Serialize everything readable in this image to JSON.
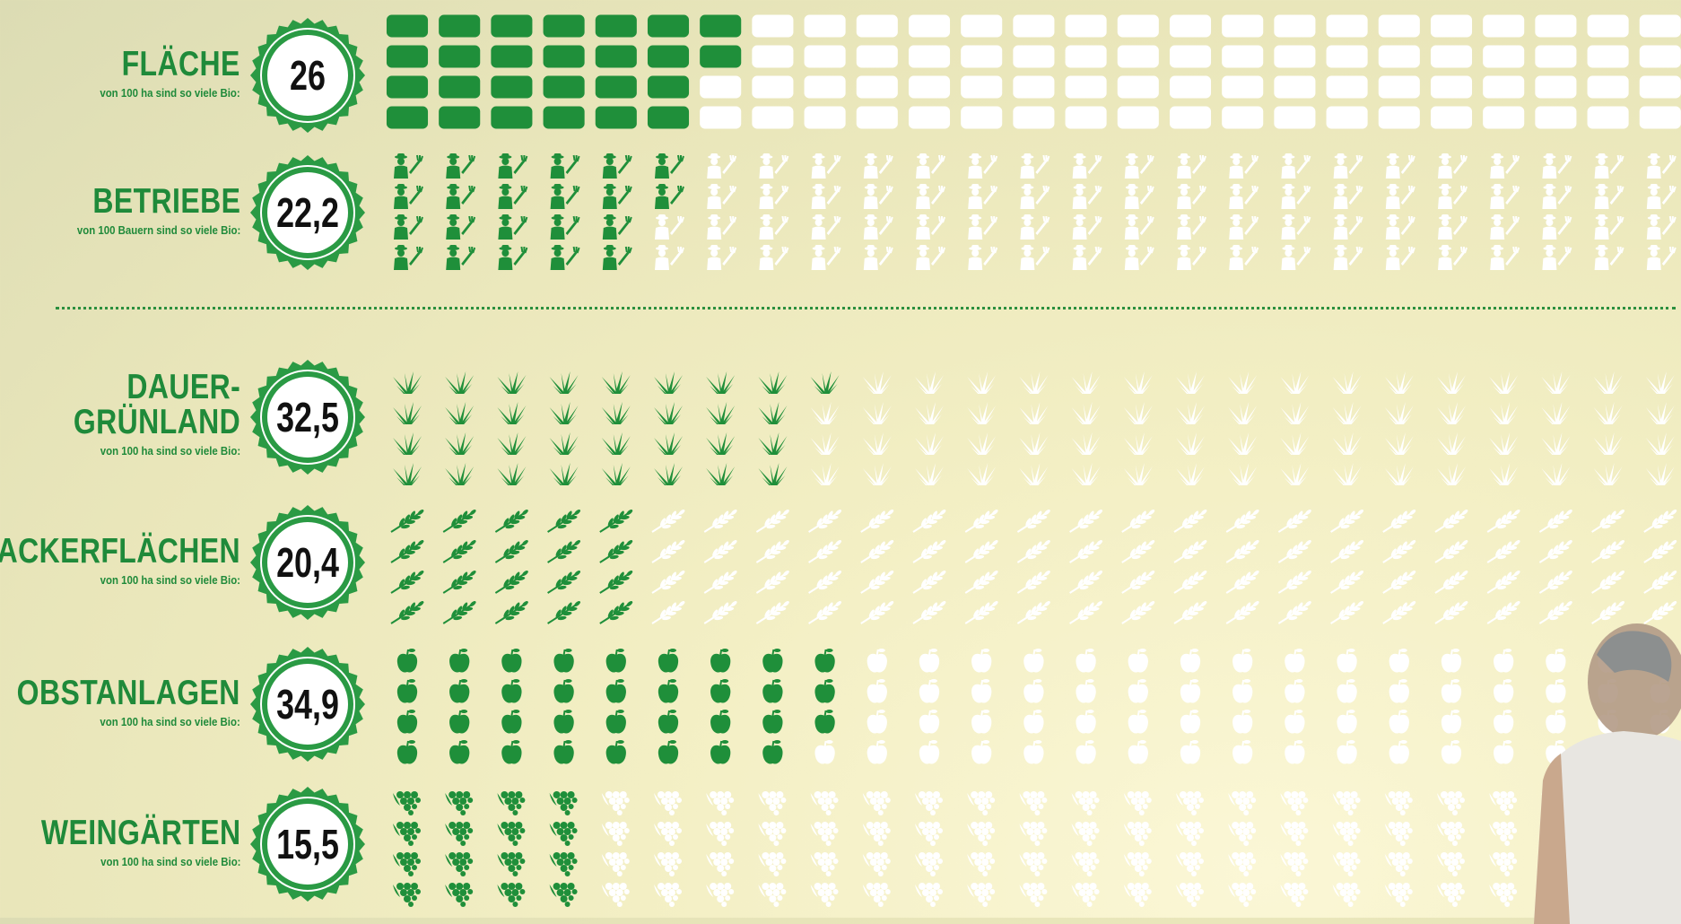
{
  "colors": {
    "filled": "#1f8f3a",
    "empty": "#ffffff",
    "badge_ring": "#2a9a44",
    "label": "#1f8a3a"
  },
  "chart_data": {
    "type": "table",
    "grid": {
      "columns": 25,
      "rows": 4,
      "units_per_row": 100
    },
    "rows": [
      {
        "key": "flaeche",
        "title_lines": [
          "FLÄCHE"
        ],
        "subtitle": "von 100 ha sind so viele Bio:",
        "value_label": "26",
        "value": 26,
        "icon": "field-block-icon"
      },
      {
        "key": "betriebe",
        "title_lines": [
          "BETRIEBE"
        ],
        "subtitle": "von 100 Bauern sind so viele Bio:",
        "value_label": "22,2",
        "value": 22.2,
        "icon": "farmer-icon"
      },
      {
        "key": "dauer",
        "title_lines": [
          "DAUER-",
          "GRÜNLAND"
        ],
        "subtitle": "von 100 ha sind so viele Bio:",
        "value_label": "32,5",
        "value": 32.5,
        "icon": "grass-icon"
      },
      {
        "key": "acker",
        "title_lines": [
          "ACKERFLÄCHEN"
        ],
        "subtitle": "von 100 ha sind so viele Bio:",
        "value_label": "20,4",
        "value": 20.4,
        "icon": "wheat-icon"
      },
      {
        "key": "obst",
        "title_lines": [
          "OBSTANLAGEN"
        ],
        "subtitle": "von 100 ha sind so viele Bio:",
        "value_label": "34,9",
        "value": 34.9,
        "icon": "apple-icon"
      },
      {
        "key": "wein",
        "title_lines": [
          "WEINGÄRTEN"
        ],
        "subtitle": "von 100 ha sind so viele Bio:",
        "value_label": "15,5",
        "value": 15.5,
        "icon": "grapes-icon"
      }
    ]
  }
}
